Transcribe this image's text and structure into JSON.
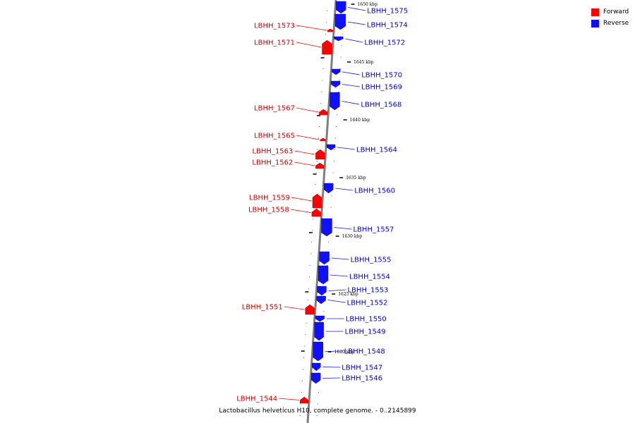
{
  "legend": {
    "forward": {
      "label": "Forward",
      "color": "#ff0000"
    },
    "reverse": {
      "label": "Reverse",
      "color": "#1010ff"
    }
  },
  "caption": "Lactobacillus helveticus H10, complete genome. - 0..2145899",
  "scale_marks": [
    "1650 kbp",
    "1645 kbp",
    "1640 kbp",
    "1635 kbp",
    "1630 kbp",
    "1625 kbp",
    "1620 kbp"
  ],
  "genes": [
    {
      "name": "LBHH_1575",
      "strand": "reverse"
    },
    {
      "name": "LBHH_1574",
      "strand": "reverse"
    },
    {
      "name": "LBHH_1573",
      "strand": "forward"
    },
    {
      "name": "LBHH_1572",
      "strand": "reverse"
    },
    {
      "name": "LBHH_1571",
      "strand": "forward"
    },
    {
      "name": "LBHH_1570",
      "strand": "reverse"
    },
    {
      "name": "LBHH_1569",
      "strand": "reverse"
    },
    {
      "name": "LBHH_1568",
      "strand": "reverse"
    },
    {
      "name": "LBHH_1567",
      "strand": "forward"
    },
    {
      "name": "LBHH_1565",
      "strand": "forward"
    },
    {
      "name": "LBHH_1564",
      "strand": "reverse"
    },
    {
      "name": "LBHH_1563",
      "strand": "forward"
    },
    {
      "name": "LBHH_1562",
      "strand": "forward"
    },
    {
      "name": "LBHH_1560",
      "strand": "reverse"
    },
    {
      "name": "LBHH_1559",
      "strand": "forward"
    },
    {
      "name": "LBHH_1558",
      "strand": "forward"
    },
    {
      "name": "LBHH_1557",
      "strand": "reverse"
    },
    {
      "name": "LBHH_1555",
      "strand": "reverse"
    },
    {
      "name": "LBHH_1554",
      "strand": "reverse"
    },
    {
      "name": "LBHH_1553",
      "strand": "reverse"
    },
    {
      "name": "LBHH_1552",
      "strand": "reverse"
    },
    {
      "name": "LBHH_1551",
      "strand": "forward"
    },
    {
      "name": "LBHH_1550",
      "strand": "reverse"
    },
    {
      "name": "LBHH_1549",
      "strand": "reverse"
    },
    {
      "name": "LBHH_1548",
      "strand": "reverse"
    },
    {
      "name": "LBHH_1547",
      "strand": "reverse"
    },
    {
      "name": "LBHH_1546",
      "strand": "reverse"
    },
    {
      "name": "LBHH_1544",
      "strand": "forward"
    }
  ]
}
